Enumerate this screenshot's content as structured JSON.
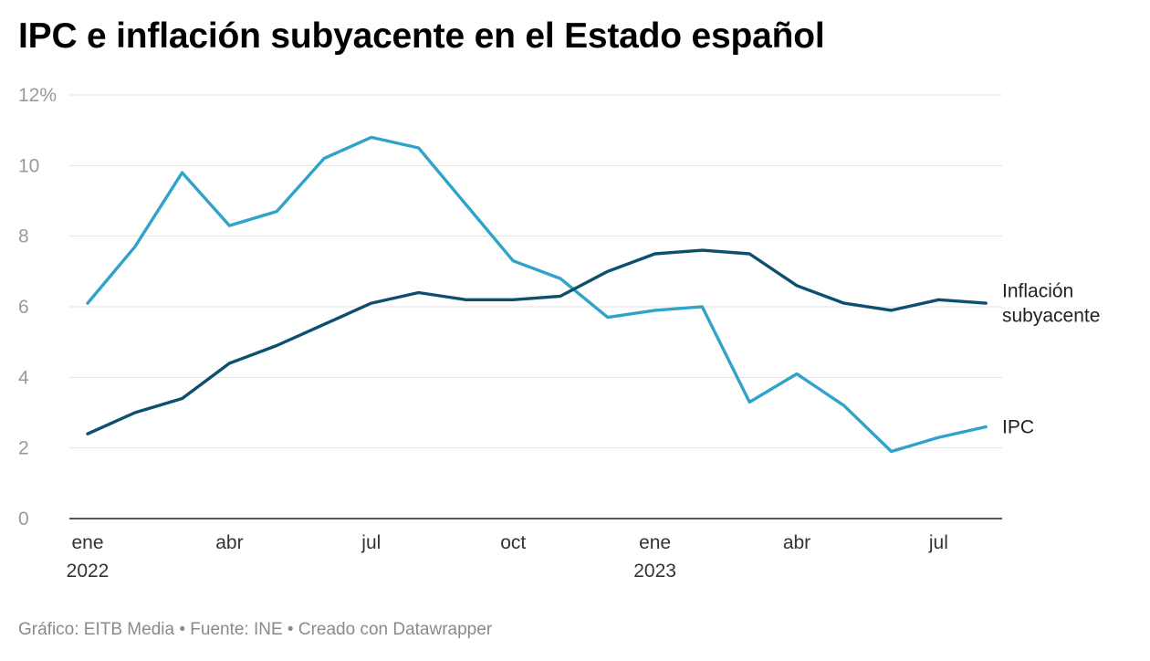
{
  "chart_data": {
    "type": "line",
    "title": "IPC e inflación subyacente en el Estado español",
    "x": [
      "2022-01",
      "2022-02",
      "2022-03",
      "2022-04",
      "2022-05",
      "2022-06",
      "2022-07",
      "2022-08",
      "2022-09",
      "2022-10",
      "2022-11",
      "2022-12",
      "2023-01",
      "2023-02",
      "2023-03",
      "2023-04",
      "2023-05",
      "2023-06",
      "2023-07",
      "2023-08"
    ],
    "x_ticks": [
      {
        "index": 0,
        "label": "ene",
        "year": "2022"
      },
      {
        "index": 3,
        "label": "abr",
        "year": ""
      },
      {
        "index": 6,
        "label": "jul",
        "year": ""
      },
      {
        "index": 9,
        "label": "oct",
        "year": ""
      },
      {
        "index": 12,
        "label": "ene",
        "year": "2023"
      },
      {
        "index": 15,
        "label": "abr",
        "year": ""
      },
      {
        "index": 18,
        "label": "jul",
        "year": ""
      }
    ],
    "y_ticks": [
      {
        "value": 0,
        "label": "0"
      },
      {
        "value": 2,
        "label": "2"
      },
      {
        "value": 4,
        "label": "4"
      },
      {
        "value": 6,
        "label": "6"
      },
      {
        "value": 8,
        "label": "8"
      },
      {
        "value": 10,
        "label": "10"
      },
      {
        "value": 12,
        "label": "12%"
      }
    ],
    "ylim": [
      0,
      12
    ],
    "grid": true,
    "series": [
      {
        "name": "IPC",
        "label_lines": [
          "IPC"
        ],
        "color": "#2fa3c9",
        "values": [
          6.1,
          7.7,
          9.8,
          8.3,
          8.7,
          10.2,
          10.8,
          10.5,
          8.9,
          7.3,
          6.8,
          5.7,
          5.9,
          6.0,
          3.3,
          4.1,
          3.2,
          1.9,
          2.3,
          2.6
        ]
      },
      {
        "name": "Inflación subyacente",
        "label_lines": [
          "Inflación",
          "subyacente"
        ],
        "color": "#0d4f6e",
        "values": [
          2.4,
          3.0,
          3.4,
          4.4,
          4.9,
          5.5,
          6.1,
          6.4,
          6.2,
          6.2,
          6.3,
          7.0,
          7.5,
          7.6,
          7.5,
          6.6,
          6.1,
          5.9,
          6.2,
          6.1
        ]
      }
    ]
  },
  "footer": "Gráfico: EITB Media • Fuente: INE • Creado con Datawrapper"
}
